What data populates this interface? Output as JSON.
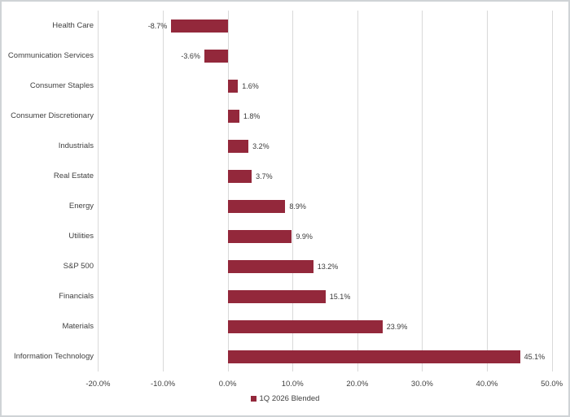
{
  "chart_data": {
    "type": "bar",
    "orientation": "horizontal",
    "title": "",
    "categories": [
      "Health Care",
      "Communication Services",
      "Consumer Staples",
      "Consumer Discretionary",
      "Industrials",
      "Real Estate",
      "Energy",
      "Utilities",
      "S&P 500",
      "Financials",
      "Materials",
      "Information Technology"
    ],
    "values": [
      -8.7,
      -3.6,
      1.6,
      1.8,
      3.2,
      3.7,
      8.9,
      9.9,
      13.2,
      15.1,
      23.9,
      45.1
    ],
    "value_labels": [
      "-8.7%",
      "-3.6%",
      "1.6%",
      "1.8%",
      "3.2%",
      "3.7%",
      "8.9%",
      "9.9%",
      "13.2%",
      "15.1%",
      "23.9%",
      "45.1%"
    ],
    "xlim": [
      -20,
      50
    ],
    "x_tick_values": [
      -20,
      -10,
      0,
      10,
      20,
      30,
      40,
      50
    ],
    "x_tick_labels": [
      "-20.0%",
      "-10.0%",
      "0.0%",
      "10.0%",
      "20.0%",
      "30.0%",
      "40.0%",
      "50.0%"
    ],
    "grid": "vertical",
    "legend": "1Q 2026 Blended",
    "legend_position": "bottom",
    "colors": {
      "bar": "#93283B",
      "gridline": "#d9d9d9",
      "text": "#3f3f3f",
      "frame_border": "#cfd3d6",
      "background": "#ffffff"
    }
  }
}
